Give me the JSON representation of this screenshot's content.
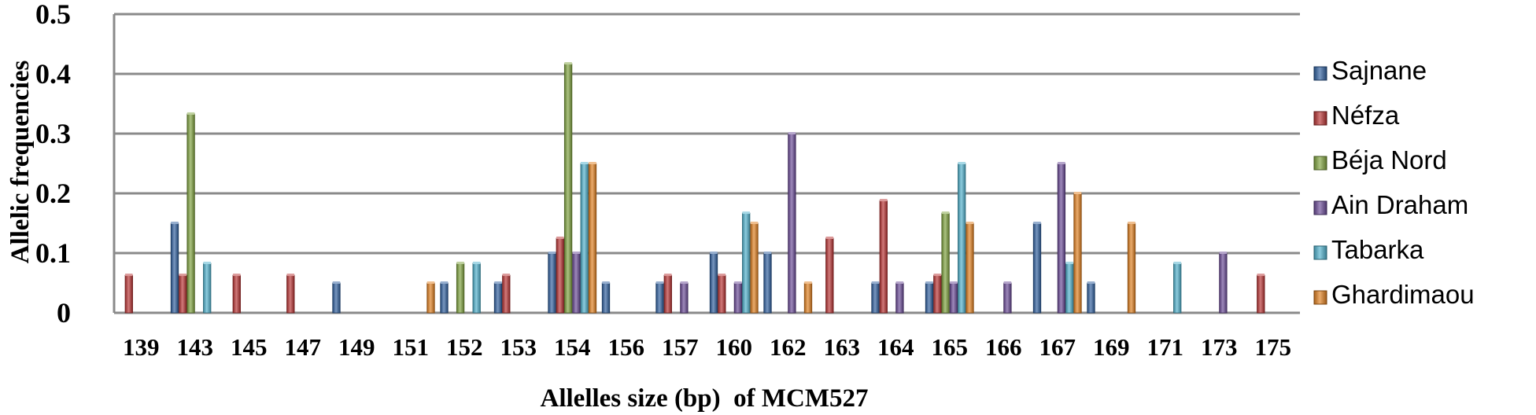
{
  "chart_data": {
    "type": "bar",
    "title": "",
    "xlabel": "Allelles size (bp)  of MCM527",
    "ylabel": "Allelic frequencies",
    "ylim": [
      0,
      0.5
    ],
    "yticks": [
      "0",
      "0.1",
      "0.2",
      "0.3",
      "0.4",
      "0.5"
    ],
    "grid": true,
    "legend_position": "right",
    "categories": [
      "139",
      "143",
      "145",
      "147",
      "149",
      "151",
      "152",
      "153",
      "154",
      "156",
      "157",
      "160",
      "162",
      "163",
      "164",
      "165",
      "166",
      "167",
      "169",
      "171",
      "173",
      "175"
    ],
    "series": [
      {
        "name": "Sajnane",
        "color": "#2f5f9e",
        "values": [
          0,
          0.15,
          0,
          0,
          0.05,
          0,
          0.05,
          0.05,
          0.1,
          0.05,
          0.05,
          0.1,
          0.1,
          0,
          0.05,
          0.05,
          0,
          0.15,
          0.05,
          0,
          0,
          0
        ]
      },
      {
        "name": "Néfza",
        "color": "#b83232",
        "values": [
          0.063,
          0.063,
          0.063,
          0.063,
          0,
          0,
          0,
          0.063,
          0.125,
          0,
          0.063,
          0.063,
          0,
          0.125,
          0.188,
          0.063,
          0,
          0,
          0,
          0,
          0,
          0.063
        ]
      },
      {
        "name": "Béja Nord",
        "color": "#7fa23e",
        "values": [
          0,
          0.333,
          0,
          0,
          0,
          0,
          0.083,
          0,
          0.417,
          0,
          0,
          0,
          0,
          0,
          0,
          0.167,
          0,
          0,
          0,
          0,
          0,
          0
        ]
      },
      {
        "name": "Ain Draham",
        "color": "#6a4a96",
        "values": [
          0,
          0,
          0,
          0,
          0,
          0,
          0,
          0,
          0.1,
          0,
          0.05,
          0.05,
          0.3,
          0,
          0.05,
          0.05,
          0.05,
          0.25,
          0,
          0,
          0.1,
          0
        ]
      },
      {
        "name": "Tabarka",
        "color": "#4fb0cc",
        "values": [
          0,
          0.083,
          0,
          0,
          0,
          0,
          0.083,
          0,
          0.25,
          0,
          0,
          0.167,
          0,
          0,
          0,
          0.25,
          0,
          0.083,
          0,
          0.083,
          0,
          0
        ]
      },
      {
        "name": "Ghardimaou",
        "color": "#e07f1f",
        "values": [
          0,
          0,
          0,
          0,
          0,
          0.05,
          0,
          0,
          0.25,
          0,
          0,
          0.15,
          0.05,
          0,
          0,
          0.15,
          0,
          0.2,
          0.15,
          0,
          0,
          0
        ]
      }
    ]
  }
}
